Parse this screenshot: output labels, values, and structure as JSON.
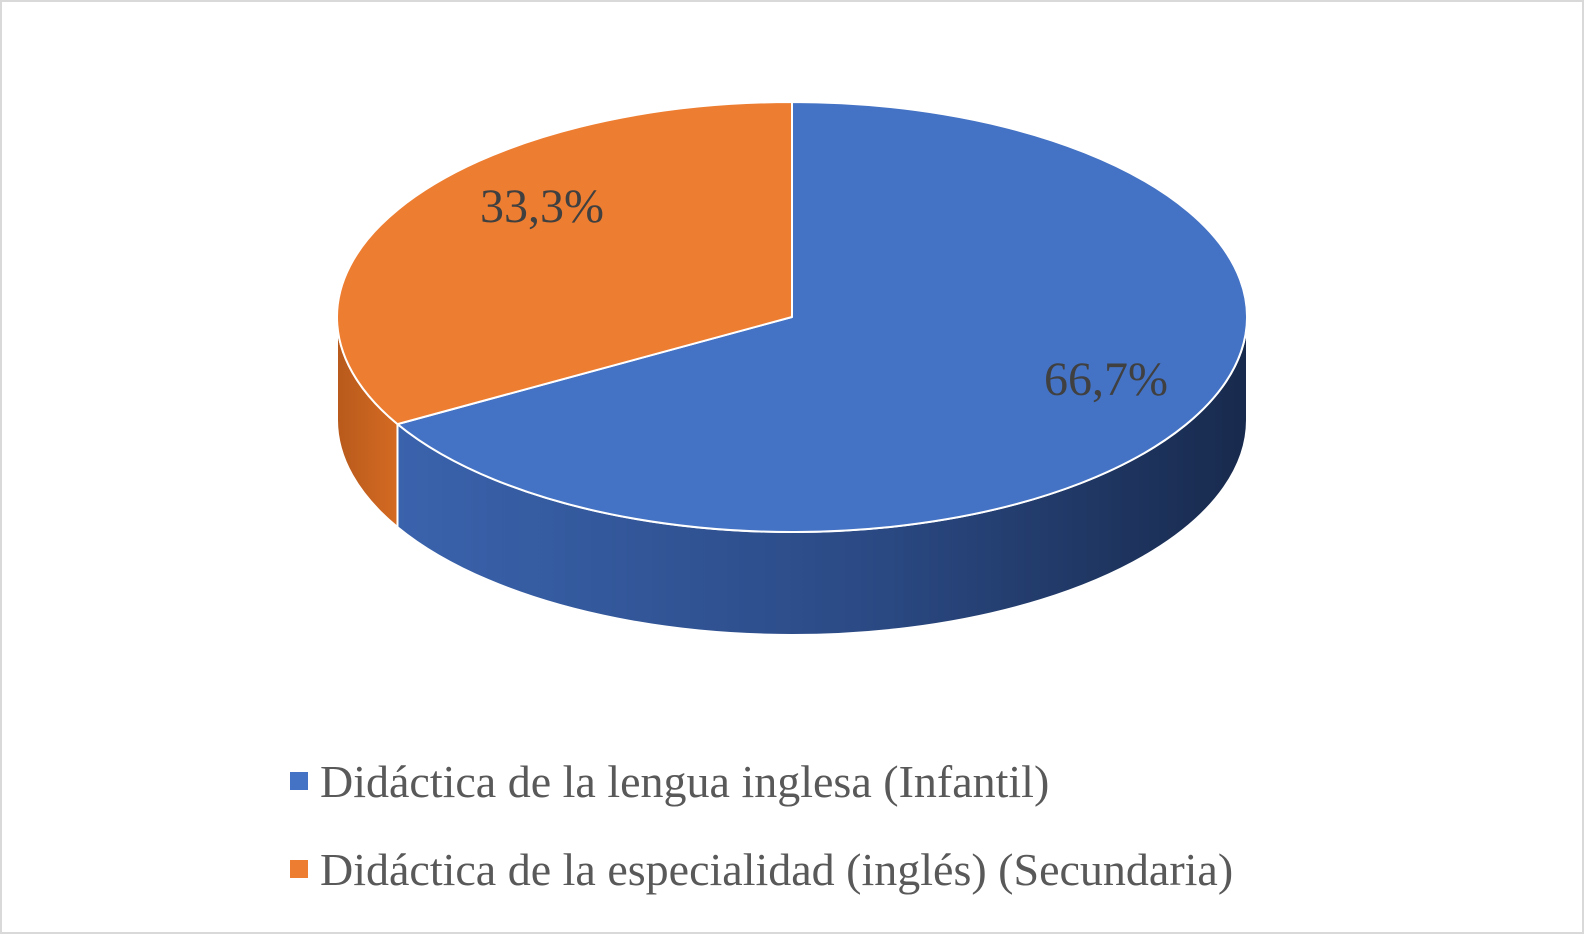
{
  "chart_data": {
    "type": "pie",
    "style": "3d",
    "categories": [
      "Didáctica de la lengua inglesa (Infantil)",
      "Didáctica de la especialidad (inglés) (Secundaria)"
    ],
    "values": [
      66.7,
      33.3
    ],
    "data_labels": [
      "66,7%",
      "33,3%"
    ],
    "colors": [
      "#4472c4",
      "#ed7d31"
    ],
    "legend": "bottom"
  }
}
